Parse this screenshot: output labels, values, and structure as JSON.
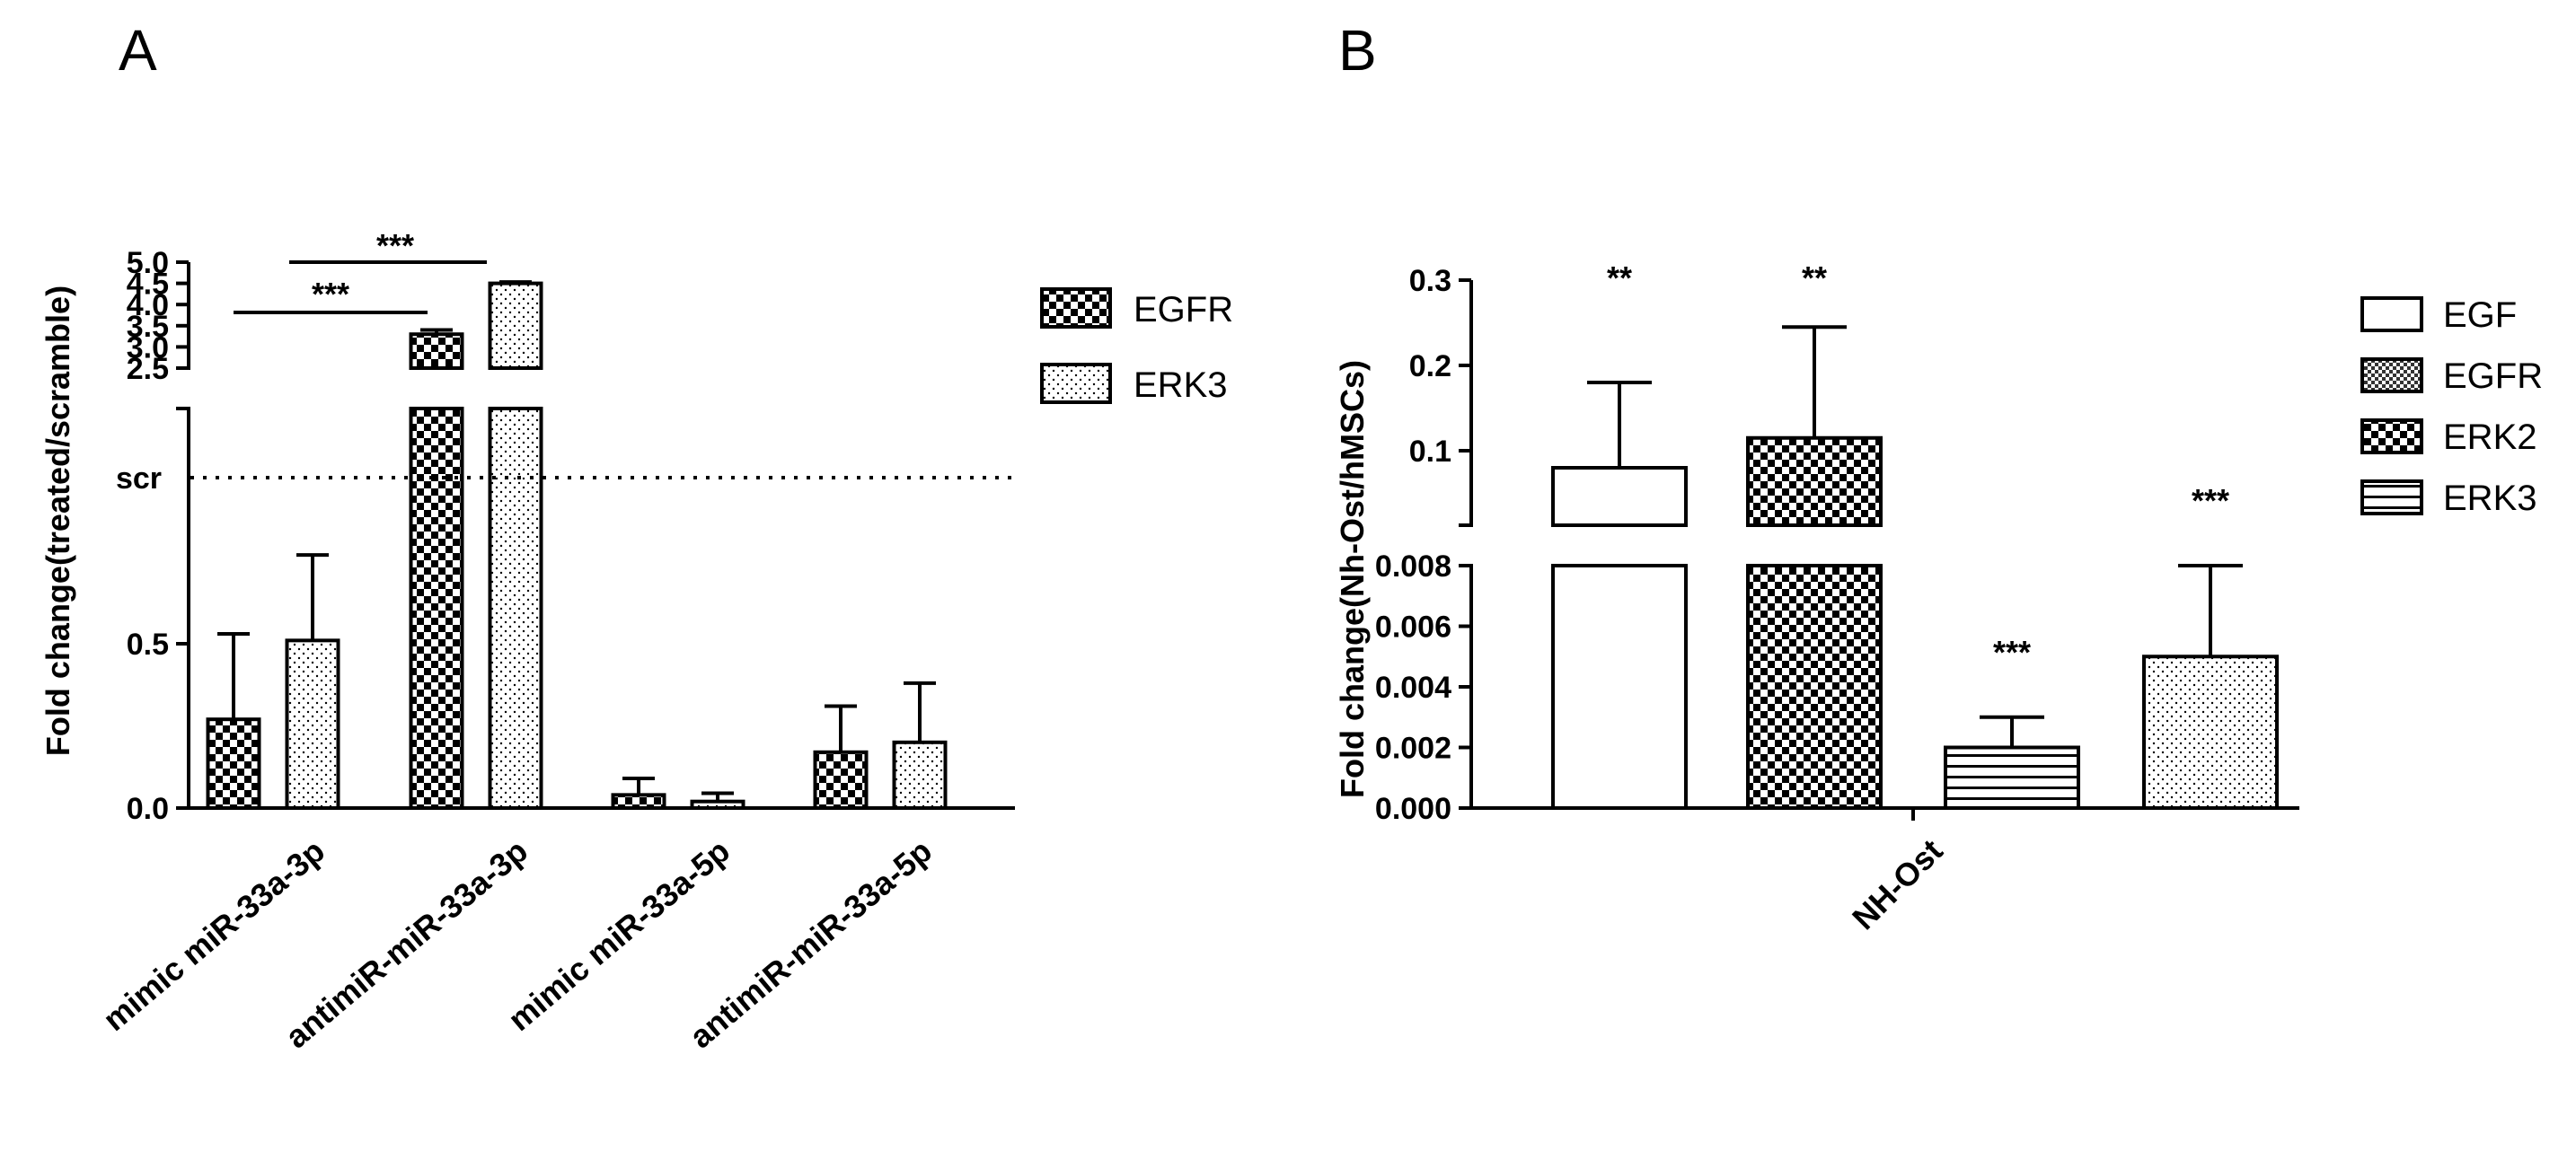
{
  "colors": {
    "ink": "#000000",
    "background": "#ffffff"
  },
  "chart_data": [
    {
      "panel": "A",
      "type": "bar",
      "title": "",
      "xlabel": "",
      "ylabel": "Fold change(treated/scramble)",
      "categories": [
        "mimic miR-33a-3p",
        "antimiR-miR-33a-3p",
        "mimic miR-33a-5p",
        "antimiR-miR-33a-5p"
      ],
      "series": [
        {
          "name": "EGFR",
          "pattern": "checker",
          "values": [
            0.27,
            3.3,
            0.04,
            0.17
          ],
          "errors": [
            0.26,
            0.1,
            0.05,
            0.14
          ]
        },
        {
          "name": "ERK3",
          "pattern": "dots",
          "values": [
            0.51,
            4.5,
            0.02,
            0.2
          ],
          "errors": [
            0.26,
            0.03,
            0.025,
            0.18
          ]
        }
      ],
      "axis_segments": [
        {
          "range": [
            0,
            1.2
          ],
          "ticks": [
            "0.0",
            "0.5"
          ]
        },
        {
          "range": [
            2.5,
            5.0
          ],
          "ticks": [
            "2.5",
            "3.0",
            "3.5",
            "4.0",
            "4.5",
            "5.0"
          ]
        }
      ],
      "reference_line": {
        "label": "scr",
        "value": 1.0,
        "style": "dotted"
      },
      "annotations": [
        {
          "text": "***",
          "between": [
            "EGFR mimic miR-33a-3p",
            "EGFR antimiR-miR-33a-3p"
          ]
        },
        {
          "text": "***",
          "between": [
            "ERK3 mimic miR-33a-3p",
            "ERK3 antimiR-miR-33a-3p"
          ]
        }
      ],
      "legend_position": "right",
      "grid": false
    },
    {
      "panel": "B",
      "type": "bar",
      "title": "",
      "xlabel": "",
      "ylabel": "Fold change(Nh-Ost/hMSCs)",
      "categories": [
        "NH-Ost"
      ],
      "series": [
        {
          "name": "EGF",
          "pattern": "empty",
          "value": 0.08,
          "error": 0.1,
          "significance": "**"
        },
        {
          "name": "EGFR",
          "pattern": "checker",
          "value": 0.115,
          "error": 0.13,
          "significance": "**"
        },
        {
          "name": "ERK2",
          "pattern": "checker",
          "value": null,
          "error": null,
          "significance": ""
        },
        {
          "name": "ERK3",
          "pattern": "lines",
          "value": 0.002,
          "error": 0.001,
          "significance": "***"
        },
        {
          "name": "",
          "pattern": "dots",
          "value": 0.005,
          "error": 0.003,
          "significance": "***"
        }
      ],
      "axis_segments": [
        {
          "range": [
            0,
            0.008
          ],
          "ticks": [
            "0.000",
            "0.002",
            "0.004",
            "0.006",
            "0.008"
          ]
        },
        {
          "range": [
            0.05,
            0.3
          ],
          "ticks": [
            "0.1",
            "0.2",
            "0.3"
          ]
        }
      ],
      "legend_position": "right",
      "grid": false
    }
  ]
}
